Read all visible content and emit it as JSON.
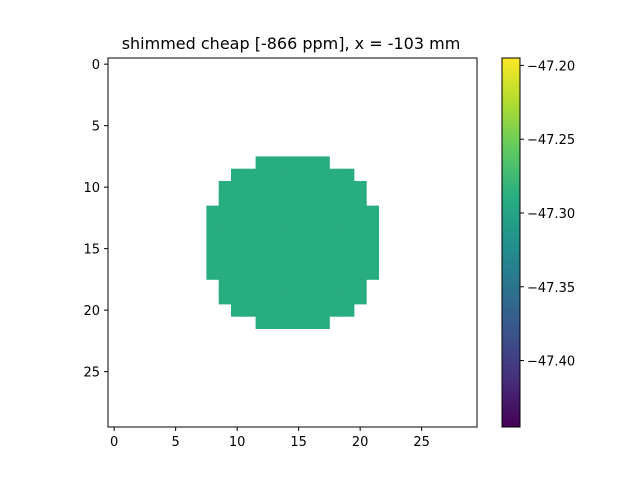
{
  "chart_data": {
    "type": "heatmap",
    "title": "shimmed cheap [-866 ppm], x = -103 mm",
    "xlabel": "",
    "ylabel": "",
    "grid": false,
    "xlim": [
      -0.5,
      29.5
    ],
    "ylim": [
      29.5,
      -0.5
    ],
    "x_ticks": [
      0,
      5,
      10,
      15,
      20,
      25
    ],
    "y_ticks": [
      0,
      5,
      10,
      15,
      20,
      25
    ],
    "colormap": "viridis",
    "colorbar": {
      "vmin": -47.445,
      "vmax": -47.195,
      "ticks": [
        -47.4,
        -47.35,
        -47.3,
        -47.25,
        -47.2
      ],
      "tick_labels": [
        "−47.40",
        "−47.35",
        "−47.30",
        "−47.25",
        "−47.20"
      ]
    },
    "mask_rows": [
      {
        "row": 8,
        "col_start": 12,
        "col_end": 17
      },
      {
        "row": 9,
        "col_start": 10,
        "col_end": 19
      },
      {
        "row": 10,
        "col_start": 9,
        "col_end": 20
      },
      {
        "row": 11,
        "col_start": 9,
        "col_end": 20
      },
      {
        "row": 12,
        "col_start": 8,
        "col_end": 21
      },
      {
        "row": 13,
        "col_start": 8,
        "col_end": 21
      },
      {
        "row": 14,
        "col_start": 8,
        "col_end": 21
      },
      {
        "row": 15,
        "col_start": 8,
        "col_end": 21
      },
      {
        "row": 16,
        "col_start": 8,
        "col_end": 21
      },
      {
        "row": 17,
        "col_start": 8,
        "col_end": 21
      },
      {
        "row": 18,
        "col_start": 9,
        "col_end": 20
      },
      {
        "row": 19,
        "col_start": 9,
        "col_end": 20
      },
      {
        "row": 20,
        "col_start": 10,
        "col_end": 19
      },
      {
        "row": 21,
        "col_start": 12,
        "col_end": 17
      }
    ],
    "cell_value_approx": -47.29
  }
}
